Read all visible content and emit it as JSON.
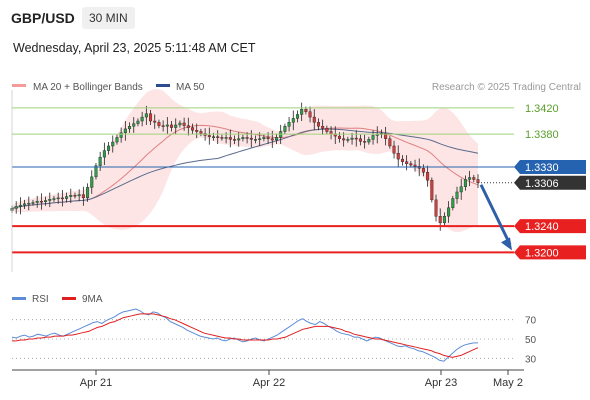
{
  "header": {
    "symbol": "GBP/USD",
    "timeframe": "30 MIN",
    "timestamp": "Wednesday, April 23, 2025 5:11:48 AM CET"
  },
  "legend": {
    "ma20": "MA 20 + Bollinger Bands",
    "ma50": "MA 50",
    "credit": "Research © 2025 Trading Central",
    "rsi": "RSI",
    "rsi_ma": "9MA"
  },
  "colors": {
    "up": "#2e9e4a",
    "down": "#d63a3a",
    "band": "#fcdcdc",
    "ma20": "#e08080",
    "ma50": "#5a6b8c",
    "resistance": "#9ed27a",
    "pivot": "#2563b0",
    "support": "#e82020",
    "current": "#333333",
    "forecast": "#2e5fa8",
    "rsi": "#5b8cd6",
    "rsi_ma": "#e02020"
  },
  "chart_data": [
    {
      "type": "candlestick",
      "title": "GBP/USD 30 MIN",
      "x_labels": [
        "Apr 21",
        "Apr 22",
        "Apr 23",
        "May 2"
      ],
      "ylim": [
        1.3155,
        1.3435
      ],
      "levels": [
        {
          "value": 1.342,
          "label": "1.3420",
          "kind": "resistance"
        },
        {
          "value": 1.338,
          "label": "1.3380",
          "kind": "resistance"
        },
        {
          "value": 1.333,
          "label": "1.3330",
          "kind": "pivot"
        },
        {
          "value": 1.3306,
          "label": "1.3306",
          "kind": "current"
        },
        {
          "value": 1.324,
          "label": "1.3240",
          "kind": "support"
        },
        {
          "value": 1.32,
          "label": "1.3200",
          "kind": "support"
        }
      ],
      "closes": [
        1.3267,
        1.327,
        1.3272,
        1.3274,
        1.3275,
        1.3276,
        1.3278,
        1.3277,
        1.3279,
        1.3281,
        1.3282,
        1.3283,
        1.3282,
        1.3285,
        1.3287,
        1.3286,
        1.3288,
        1.3283,
        1.3299,
        1.3315,
        1.3332,
        1.3345,
        1.3355,
        1.3362,
        1.3368,
        1.3375,
        1.3382,
        1.3388,
        1.3392,
        1.3396,
        1.34,
        1.3406,
        1.3411,
        1.34,
        1.3398,
        1.3393,
        1.3392,
        1.3394,
        1.339,
        1.3394,
        1.3397,
        1.3393,
        1.339,
        1.3386,
        1.3384,
        1.3381,
        1.3378,
        1.3376,
        1.3376,
        1.3375,
        1.3374,
        1.3375,
        1.3372,
        1.3371,
        1.3373,
        1.3375,
        1.3374,
        1.3372,
        1.3372,
        1.3373,
        1.3375,
        1.3373,
        1.3371,
        1.3375,
        1.3384,
        1.3392,
        1.3398,
        1.3404,
        1.341,
        1.3418,
        1.3414,
        1.3406,
        1.3398,
        1.3392,
        1.3389,
        1.3384,
        1.338,
        1.3377,
        1.3373,
        1.3371,
        1.3372,
        1.3374,
        1.3373,
        1.3369,
        1.3368,
        1.3372,
        1.3378,
        1.338,
        1.3381,
        1.3373,
        1.3362,
        1.3351,
        1.3342,
        1.3338,
        1.3335,
        1.3333,
        1.3331,
        1.3328,
        1.3322,
        1.331,
        1.328,
        1.3255,
        1.3245,
        1.3255,
        1.3268,
        1.3282,
        1.3292,
        1.33,
        1.3311,
        1.3314,
        1.3311,
        1.3306
      ],
      "ma50_end": 1.333
    },
    {
      "type": "line",
      "title": "RSI",
      "series": [
        {
          "name": "RSI"
        },
        {
          "name": "9MA"
        }
      ],
      "levels": [
        70,
        50,
        30
      ],
      "ylim": [
        20,
        80
      ],
      "rsi": [
        52,
        51,
        53,
        54,
        52,
        53,
        55,
        54,
        53,
        55,
        56,
        54,
        53,
        55,
        57,
        59,
        61,
        63,
        65,
        67,
        68,
        66,
        69,
        71,
        73,
        76,
        78,
        79,
        80,
        81,
        79,
        76,
        75,
        78,
        77,
        74,
        72,
        68,
        66,
        64,
        62,
        59,
        57,
        55,
        53,
        52,
        51,
        50,
        51,
        49,
        48,
        50,
        51,
        49,
        47,
        48,
        50,
        51,
        49,
        48,
        50,
        52,
        54,
        57,
        60,
        63,
        66,
        69,
        71,
        68,
        66,
        65,
        68,
        66,
        63,
        61,
        58,
        56,
        55,
        54,
        52,
        52,
        50,
        48,
        50,
        52,
        51,
        49,
        47,
        45,
        43,
        42,
        43,
        41,
        40,
        38,
        37,
        35,
        33,
        31,
        28,
        27,
        31,
        35,
        39,
        42,
        44,
        45,
        46,
        46
      ],
      "rsi_ma": [
        48,
        48,
        49,
        49,
        50,
        50,
        51,
        51,
        52,
        52,
        53,
        53,
        53,
        54,
        54,
        55,
        56,
        57,
        58,
        60,
        62,
        63,
        65,
        67,
        68,
        70,
        72,
        73,
        74,
        75,
        76,
        76,
        76,
        76,
        75,
        74,
        73,
        71,
        70,
        68,
        66,
        64,
        62,
        60,
        58,
        56,
        55,
        54,
        53,
        52,
        51,
        51,
        50,
        50,
        49,
        49,
        49,
        49,
        49,
        49,
        49,
        50,
        50,
        51,
        52,
        54,
        56,
        58,
        60,
        61,
        62,
        63,
        63,
        63,
        63,
        62,
        61,
        60,
        58,
        57,
        55,
        54,
        53,
        52,
        51,
        50,
        50,
        49,
        48,
        47,
        46,
        45,
        44,
        43,
        42,
        41,
        40,
        39,
        38,
        36,
        35,
        33,
        32,
        31,
        32,
        33,
        35,
        37,
        39,
        41
      ]
    }
  ]
}
